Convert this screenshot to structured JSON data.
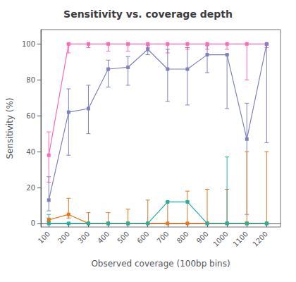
{
  "chart_data": {
    "type": "line",
    "title": "Sensitivity vs. coverage depth",
    "xlabel": "Observed coverage (100bp bins)",
    "ylabel": "Sensitivity (%)",
    "x": [
      100,
      200,
      300,
      400,
      500,
      600,
      700,
      800,
      900,
      1000,
      1100,
      1200
    ],
    "series": [
      {
        "color": "#ff69b4",
        "marker": "square",
        "values": [
          38,
          100,
          100,
          100,
          100,
          100,
          100,
          100,
          100,
          100,
          100,
          100
        ],
        "yerr_lo": [
          15,
          5,
          2,
          4,
          4,
          2,
          5,
          3,
          3,
          3,
          20,
          2
        ],
        "yerr_hi": [
          13,
          0,
          0,
          0,
          0,
          0,
          0,
          0,
          0,
          0,
          0,
          0
        ]
      },
      {
        "color": "#8080c0",
        "marker": "square",
        "values": [
          13,
          62,
          64,
          86,
          87,
          97,
          86,
          86,
          94,
          94,
          47,
          100
        ],
        "yerr_lo": [
          6,
          24,
          14,
          10,
          10,
          3,
          18,
          20,
          10,
          30,
          42,
          55
        ],
        "yerr_hi": [
          13,
          13,
          13,
          5,
          6,
          2,
          11,
          12,
          5,
          0,
          20,
          0
        ]
      },
      {
        "color": "#e07820",
        "marker": "square",
        "values": [
          2,
          5,
          0,
          0,
          0,
          0,
          0,
          0,
          0,
          0,
          0,
          0
        ],
        "yerr_lo": [
          1,
          2,
          0,
          0,
          0,
          0,
          0,
          0,
          0,
          0,
          0,
          0
        ],
        "yerr_hi": [
          1,
          9,
          6,
          6,
          8,
          13,
          12,
          18,
          19,
          19,
          40,
          40
        ]
      },
      {
        "color": "#20b0a0",
        "marker": "square",
        "values": [
          0,
          0,
          0,
          0,
          0,
          0,
          12,
          12,
          0,
          0,
          0,
          0
        ],
        "yerr_lo": [
          0,
          0,
          0,
          0,
          0,
          0,
          0,
          0,
          0,
          0,
          0,
          0
        ],
        "yerr_hi": [
          5,
          0,
          0,
          0,
          0,
          0,
          0,
          0,
          0,
          37,
          0,
          0
        ]
      }
    ],
    "xlim": [
      60,
      1270
    ],
    "xticks": [
      100,
      200,
      300,
      400,
      500,
      600,
      700,
      800,
      900,
      1000,
      1100,
      1200
    ],
    "ylim": [
      -2,
      108
    ],
    "yticks": [
      0,
      20,
      40,
      60,
      80,
      100
    ],
    "grid": false
  }
}
